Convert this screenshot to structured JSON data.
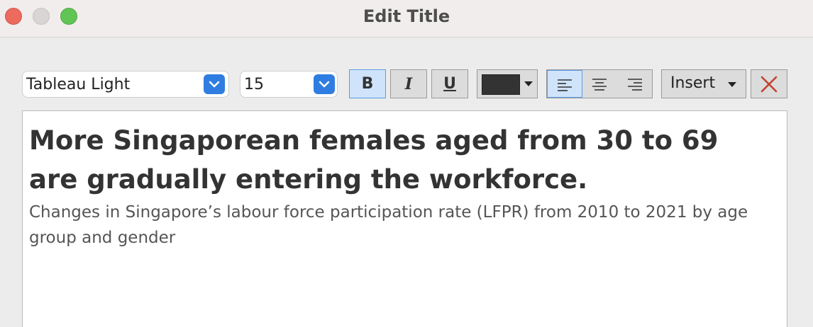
{
  "window": {
    "title": "Edit Title"
  },
  "toolbar": {
    "font_family": "Tableau Light",
    "font_size": "15",
    "bold_label": "B",
    "italic_label": "I",
    "underline_label": "U",
    "text_color": "#333333",
    "insert_label": "Insert",
    "bold_active": true,
    "alignment": "left"
  },
  "editor": {
    "headline": "More Singaporean females aged from 30 to 69 are gradually entering the workforce.",
    "subtitle": "Changes in Singapore’s labour force participation rate (LFPR) from 2010 to 2021 by age group and gender"
  },
  "icons": {
    "close_window": "close-circle-icon",
    "minimize_window": "minimize-circle-icon",
    "zoom_window": "zoom-circle-icon",
    "dropdown": "chevron-down-icon",
    "align_left": "align-left-icon",
    "align_center": "align-center-icon",
    "align_right": "align-right-icon",
    "clear": "x-icon"
  }
}
